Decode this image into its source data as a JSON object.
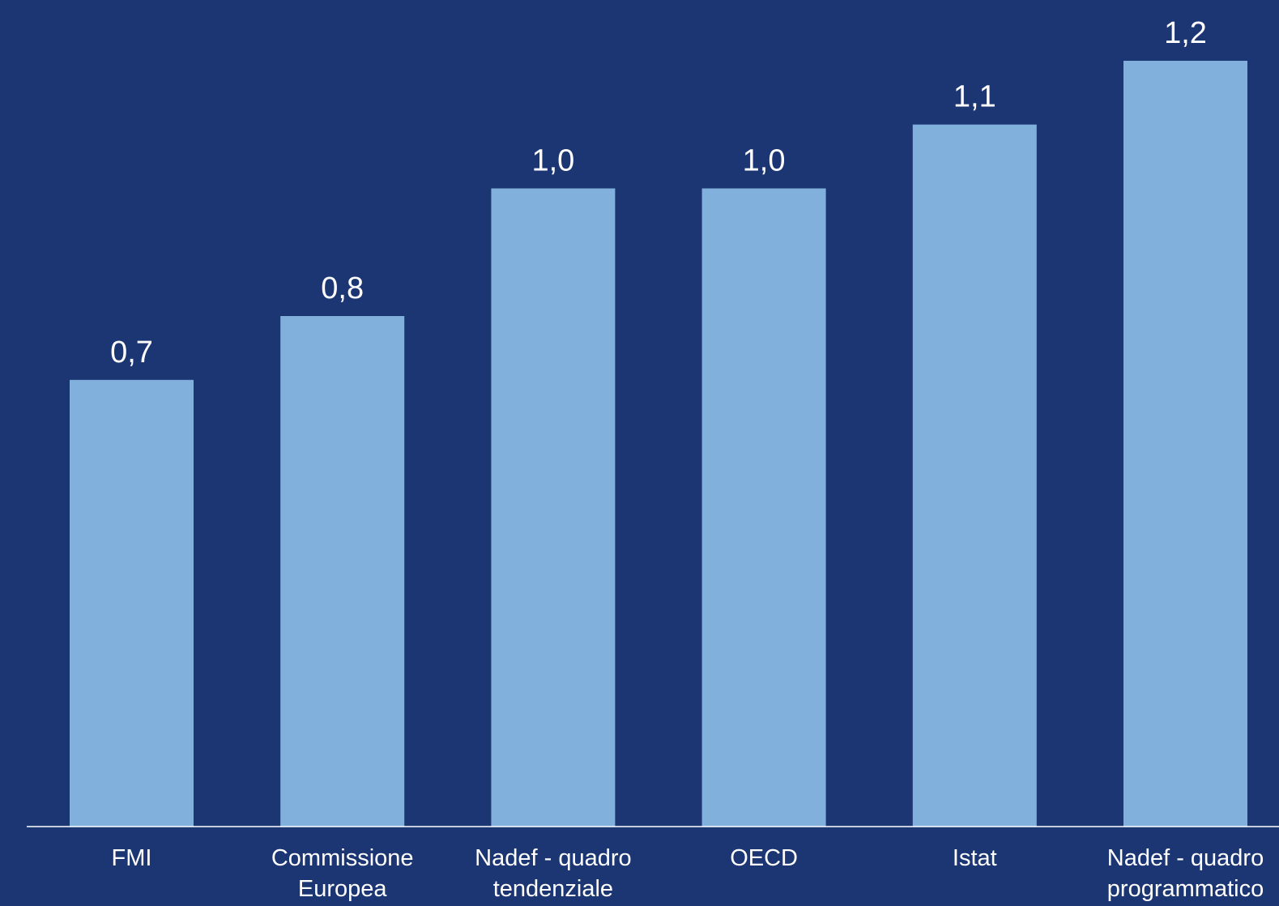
{
  "colors": {
    "background": "#1b3672",
    "bar": "#82b0dc",
    "text": "#ffffff",
    "axis": "#ffffff"
  },
  "chart_data": {
    "type": "bar",
    "categories": [
      [
        "FMI"
      ],
      [
        "Commissione",
        "Europea"
      ],
      [
        "Nadef - quadro",
        "tendenziale"
      ],
      [
        "OECD"
      ],
      [
        "Istat"
      ],
      [
        "Nadef - quadro",
        "programmatico"
      ]
    ],
    "values": [
      0.7,
      0.8,
      1.0,
      1.0,
      1.1,
      1.2
    ],
    "data_labels": [
      "0,7",
      "0,8",
      "1,0",
      "1,0",
      "1,1",
      "1,2"
    ],
    "ylim": [
      0,
      1.3
    ],
    "grid": false,
    "legend": "none"
  }
}
